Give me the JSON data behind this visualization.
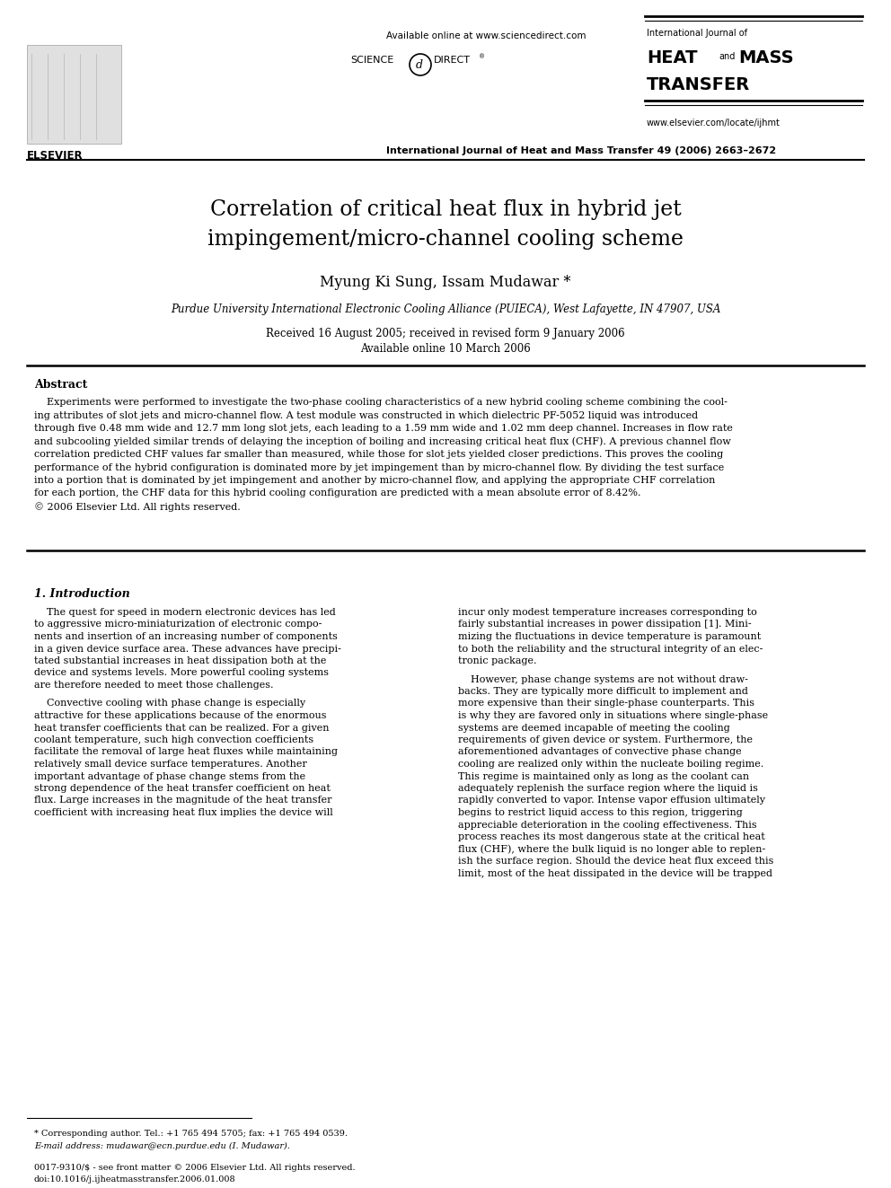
{
  "title_line1": "Correlation of critical heat flux in hybrid jet",
  "title_line2": "impingement/micro-channel cooling scheme",
  "authors": "Myung Ki Sung, Issam Mudawar *",
  "affiliation": "Purdue University International Electronic Cooling Alliance (PUIECA), West Lafayette, IN 47907, USA",
  "received": "Received 16 August 2005; received in revised form 9 January 2006",
  "available_online": "Available online 10 March 2006",
  "header_center": "Available online at www.sciencedirect.com",
  "journal_ref": "International Journal of Heat and Mass Transfer 49 (2006) 2663–2672",
  "journal_name_line1": "International Journal of",
  "journal_name_line2_a": "HEAT",
  "journal_name_line2_b": "and",
  "journal_name_line2_c": "MASS",
  "journal_name_line3": "TRANSFER",
  "journal_url": "www.elsevier.com/locate/ijhmt",
  "elsevier_label": "ELSEVIER",
  "abstract_title": "Abstract",
  "section1_title": "1. Introduction",
  "footnote_star": "* Corresponding author. Tel.: +1 765 494 5705; fax: +1 765 494 0539.",
  "footnote_email": "E-mail address: mudawar@ecn.purdue.edu (I. Mudawar).",
  "footer_issn": "0017-9310/$ - see front matter © 2006 Elsevier Ltd. All rights reserved.",
  "footer_doi": "doi:10.1016/j.ijheatmasstransfer.2006.01.008",
  "background_color": "#ffffff"
}
